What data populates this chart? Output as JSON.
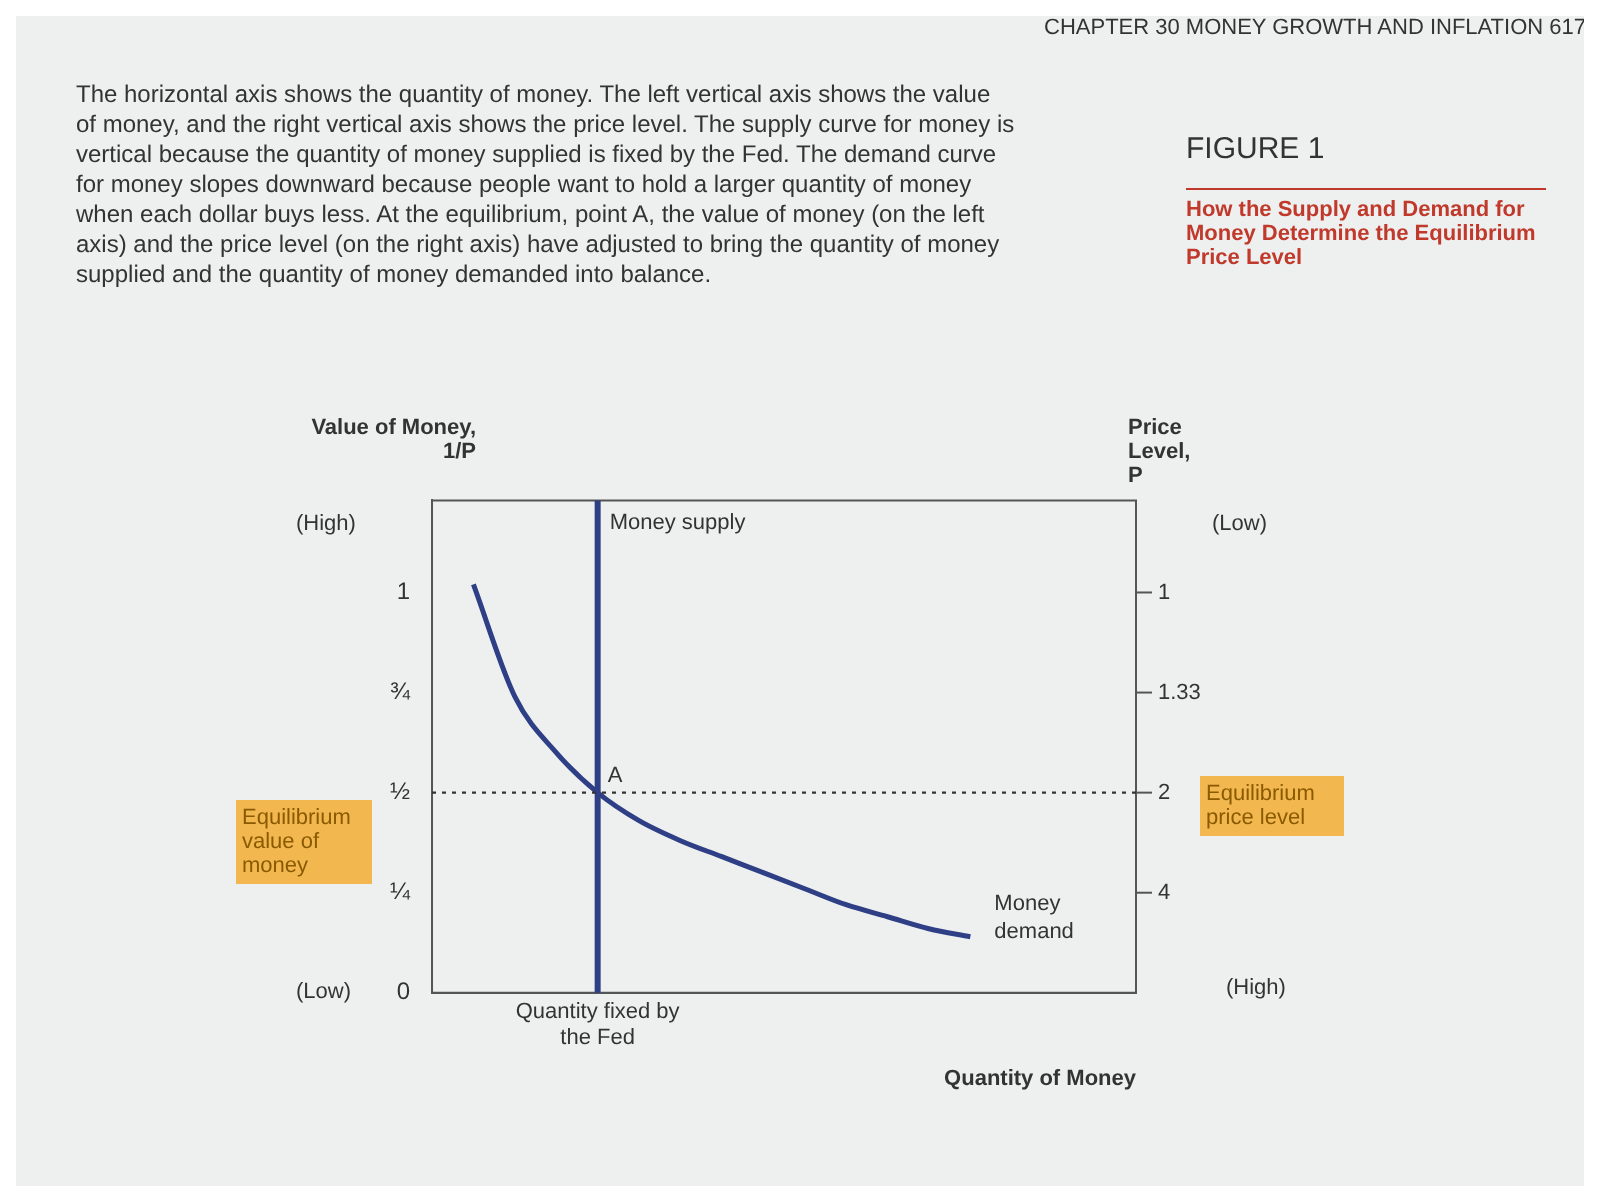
{
  "chart_data": {
    "type": "line",
    "title": "How the Supply and Demand for Money Determine the Equilibrium Price Level",
    "subtitle": "FIGURE 1",
    "xlabel": "Quantity of Money",
    "ylabel": "Value of Money, 1/P",
    "y2label": "Price Level, P",
    "annotations": [
      "CHAPTER 30 MONEY GROWTH AND INFLATION 617",
      "The horizontal axis shows the quantity of money. The left vertical axis shows the value of money, and the right vertical axis shows the price level. The supply curve for money is vertical because the quantity of money supplied is fixed by the Fed. The demand curve for money slopes downward because people want to hold a larger quantity of money when each dollar buys less. At the equilibrium, point A, the value of money (on the left axis) and the price level (on the right axis) have adjusted to bring the quantity of money supplied and the quantity of money demanded into balance.",
      "(High)",
      "(Low)",
      "(Low)",
      "(High)",
      "Equilibrium value of money",
      "Equilibrium price level",
      {
        "text": "A",
        "x": "Quantity fixed by the Fed",
        "y": 0.5
      },
      "1",
      "1.33",
      "2",
      "4"
    ],
    "categories": [
      null,
      null,
      null,
      null,
      "Quantity fixed by the Fed",
      null,
      null,
      null,
      null,
      null,
      null,
      null,
      null,
      null,
      null,
      null,
      null,
      null
    ],
    "series": [
      {
        "name": "Money demand",
        "color": "#2e3f86",
        "values": [
          null,
          1.02,
          0.74,
          0.6,
          0.5,
          0.43,
          0.38,
          0.34,
          0.3,
          0.26,
          0.22,
          0.19,
          0.16,
          0.14,
          null,
          null,
          null,
          null
        ]
      }
    ],
    "ylim": [
      0,
      1.23
    ],
    "yticks": [
      0,
      {
        "value": 0.25,
        "label": "¼"
      },
      {
        "value": 0.5,
        "label": "½"
      },
      {
        "value": 0.75,
        "label": "¾"
      },
      1
    ],
    "ref_lines": [
      {
        "axis": "x",
        "value": "Quantity fixed by the Fed",
        "label": "Money supply",
        "color": "#2e3f86",
        "line_style": "solid"
      },
      {
        "axis": "y",
        "value": 0.5,
        "color": "#333333",
        "line_style": "dotted"
      }
    ],
    "grid": false,
    "legend": false,
    "marker": "none",
    "line_style": "solid"
  }
}
